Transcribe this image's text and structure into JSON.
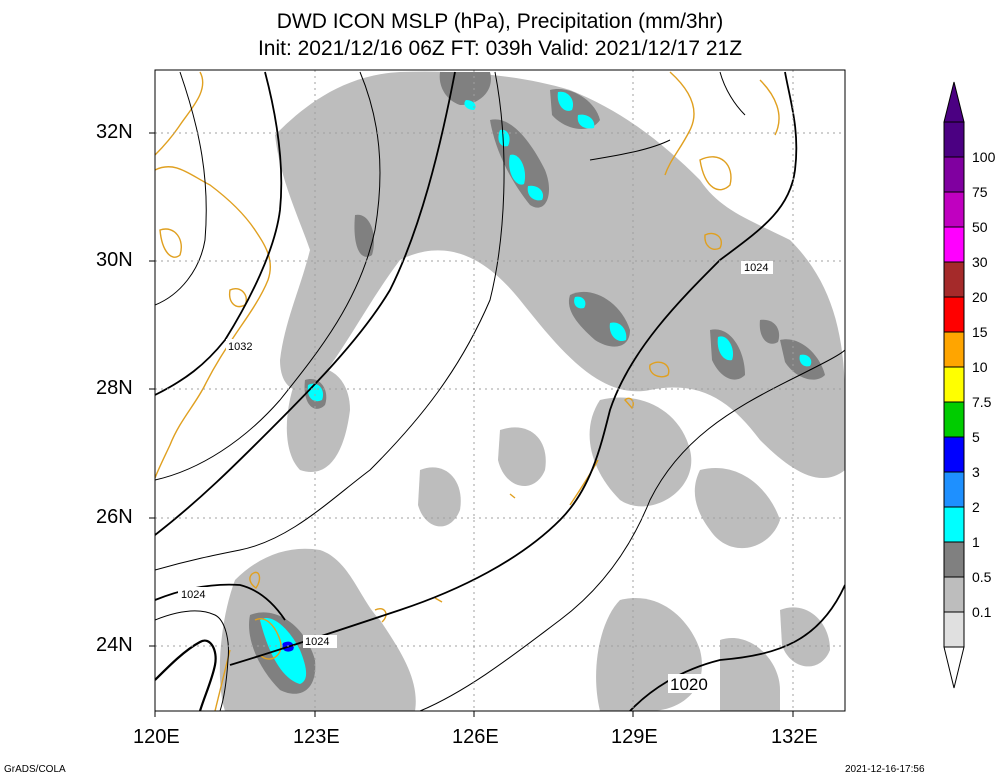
{
  "title_line1": "DWD ICON MSLP (hPa), Precipitation (mm/3hr)",
  "title_line2": "Init: 2021/12/16 06Z  FT: 039h  Valid: 2021/12/17 21Z",
  "lat_labels": [
    "32N",
    "30N",
    "28N",
    "26N",
    "24N"
  ],
  "lon_labels": [
    "120E",
    "123E",
    "126E",
    "129E",
    "132E"
  ],
  "contour_labels": [
    "1032",
    "1024",
    "1024",
    "1024",
    "1020"
  ],
  "colorbar": {
    "levels": [
      "100",
      "75",
      "50",
      "30",
      "20",
      "15",
      "10",
      "7.5",
      "5",
      "3",
      "2",
      "1",
      "0.5",
      "0.1"
    ],
    "colors": [
      "#e0e0e0",
      "#bdbdbd",
      "#808080",
      "#00ffff",
      "#1e90ff",
      "#0000ff",
      "#00cc00",
      "#ffff00",
      "#ffa500",
      "#ff0000",
      "#a52a2a",
      "#ff00ff",
      "#c000c0",
      "#8000a0",
      "#4b0082"
    ]
  },
  "footer_left": "GrADS/COLA",
  "footer_right": "2021-12-16-17:56",
  "colors": {
    "coastline": "#e0a020",
    "precip_light": "#bdbdbd",
    "precip_moderate": "#808080",
    "precip_heavy": "#00ffff"
  }
}
